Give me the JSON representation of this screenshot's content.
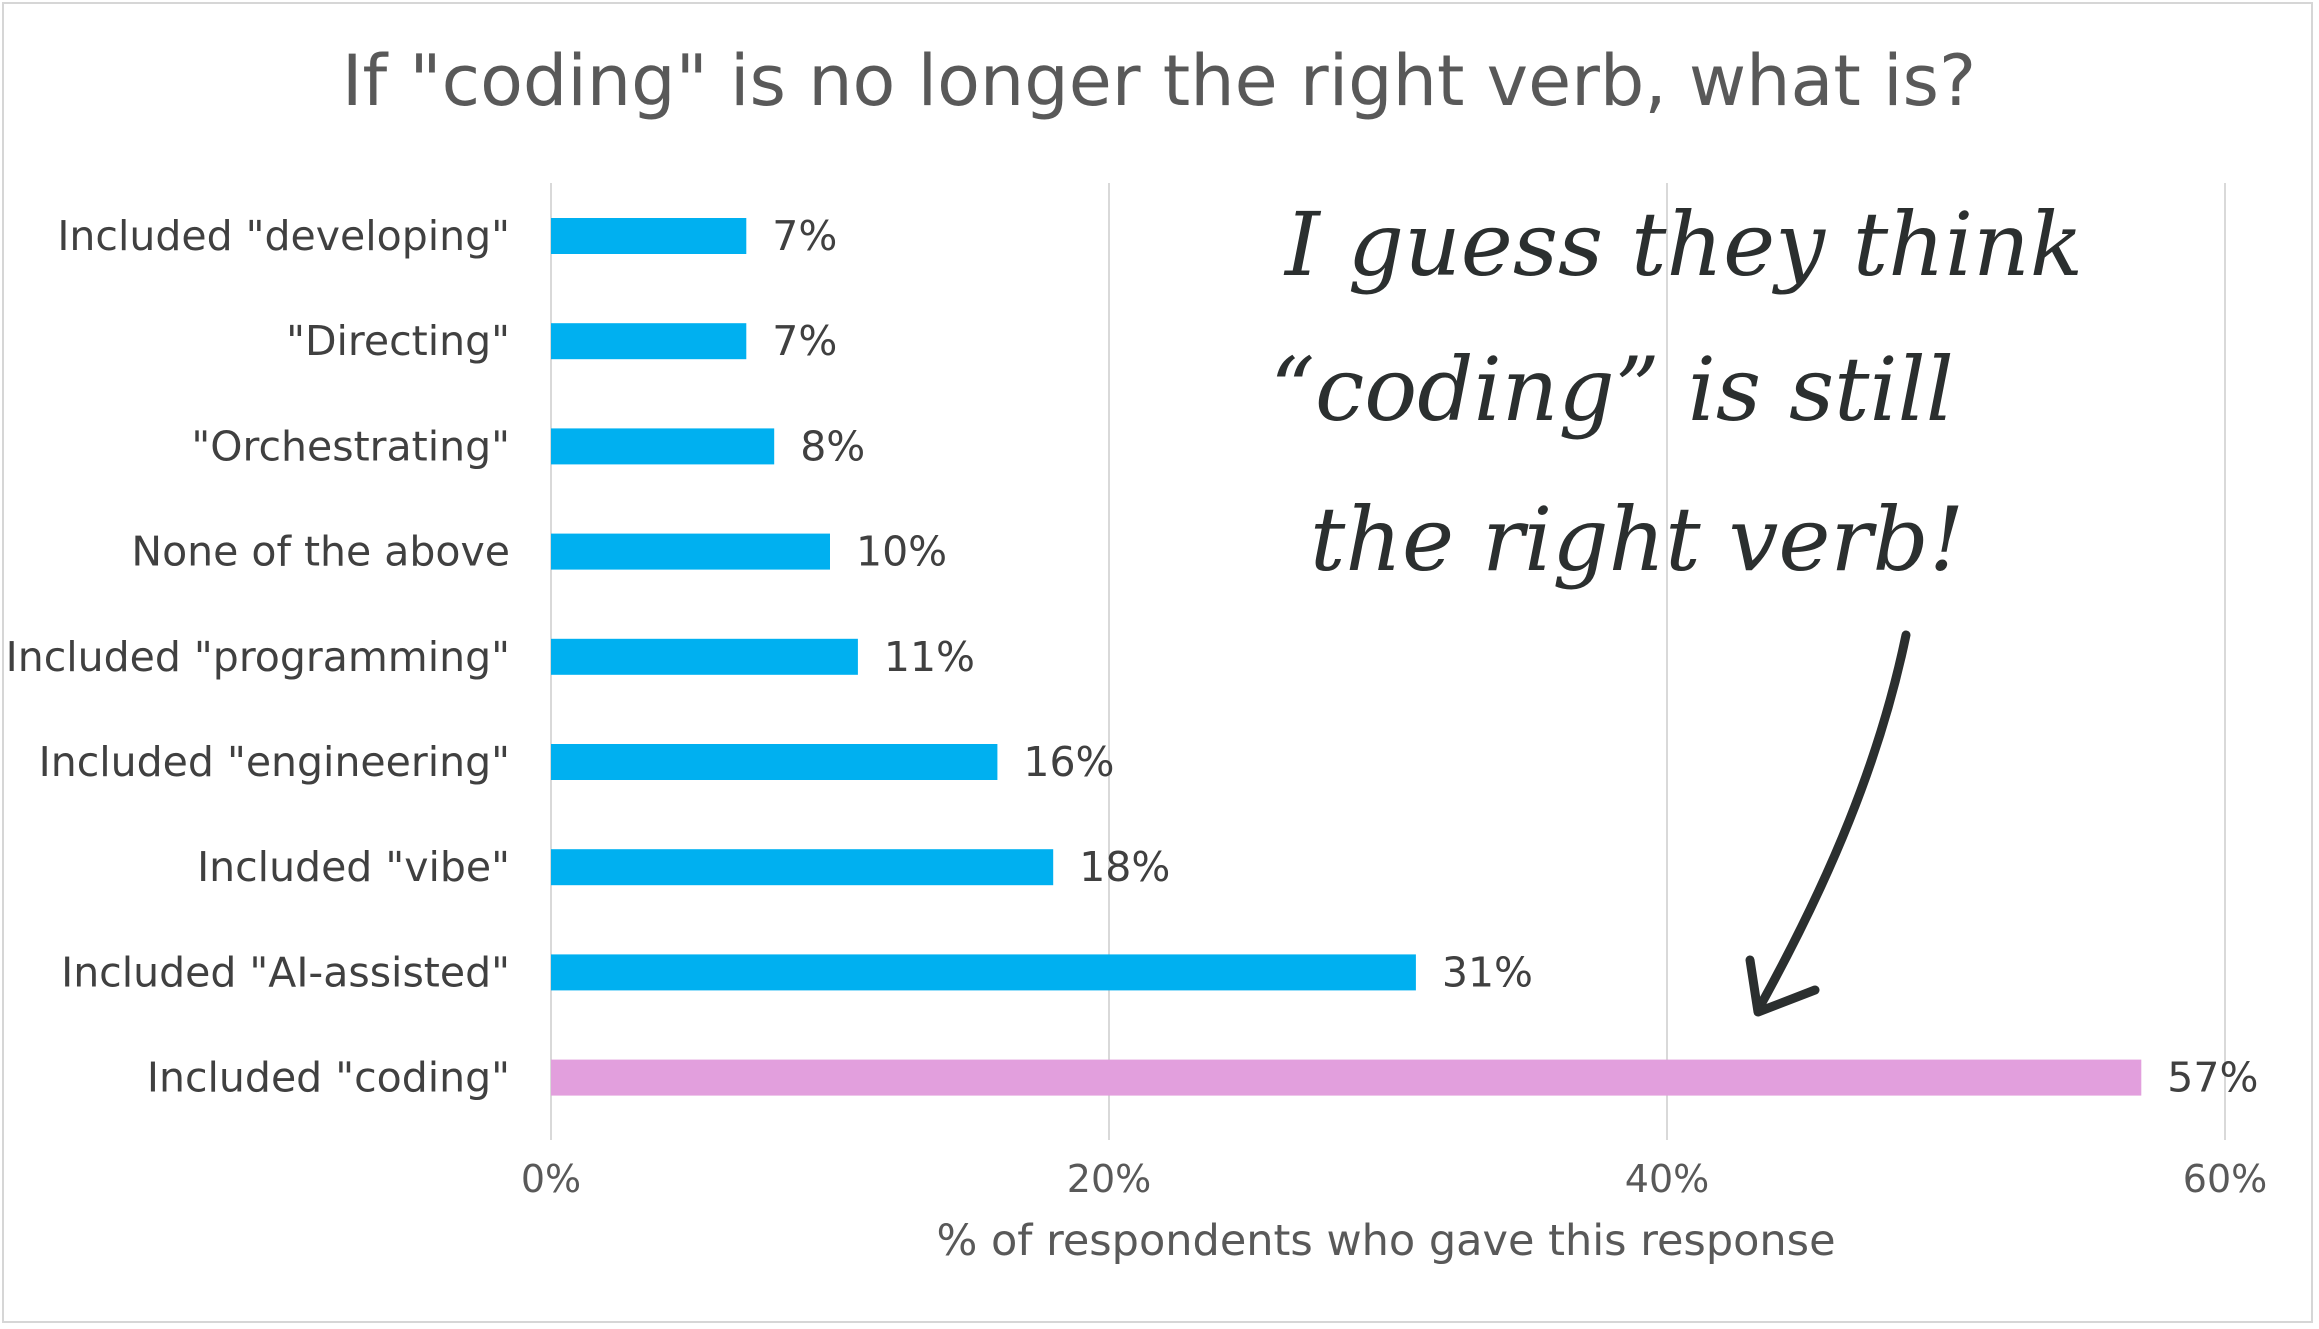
{
  "chart_data": {
    "type": "bar",
    "orientation": "horizontal",
    "title": "If \"coding\" is no longer the right verb, what is?",
    "xlabel": "% of respondents who gave this response",
    "ylabel": "",
    "xlim": [
      0,
      60
    ],
    "x_ticks": [
      0,
      20,
      40,
      60
    ],
    "x_tick_labels": [
      "0%",
      "20%",
      "40%",
      "60%"
    ],
    "grid": "vertical",
    "legend": "none",
    "categories": [
      "Included \"developing\"",
      "\"Directing\"",
      "\"Orchestrating\"",
      "None of the above",
      "Included \"programming\"",
      "Included \"engineering\"",
      "Included \"vibe\"",
      "Included \"AI-assisted\"",
      "Included \"coding\""
    ],
    "values": [
      7,
      7,
      8,
      10,
      11,
      16,
      18,
      31,
      57
    ],
    "value_labels": [
      "7%",
      "7%",
      "8%",
      "10%",
      "11%",
      "16%",
      "18%",
      "31%",
      "57%"
    ],
    "bar_colors": [
      "#00b0f0",
      "#00b0f0",
      "#00b0f0",
      "#00b0f0",
      "#00b0f0",
      "#00b0f0",
      "#00b0f0",
      "#00b0f0",
      "#e29fdd"
    ],
    "annotation": {
      "lines": [
        "I guess they think",
        "“coding” is still",
        "the right verb!"
      ],
      "style": "handwritten",
      "color": "#2b2f2f",
      "arrow_points_to": "Included \"coding\""
    }
  },
  "colors": {
    "bar": "#00b0f0",
    "highlight_bar": "#e29fdd",
    "grid": "#d9d9d9",
    "text": "#404040",
    "title": "#595959",
    "handwriting": "#2b2f2f"
  }
}
